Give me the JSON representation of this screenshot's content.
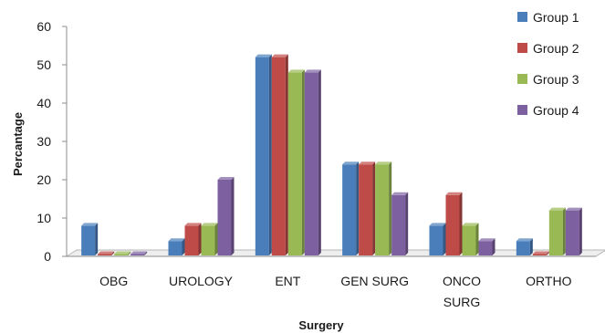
{
  "chart_data": {
    "type": "bar",
    "title": "",
    "xlabel": "Surgery",
    "ylabel": "Percantage",
    "ylim": [
      0,
      60
    ],
    "yticks": [
      0,
      10,
      20,
      30,
      40,
      50,
      60
    ],
    "grid": false,
    "legend_position": "top-right",
    "categories": [
      [
        "OBG"
      ],
      [
        "UROLOGY"
      ],
      [
        "ENT"
      ],
      [
        "GEN SURG"
      ],
      [
        "ONCO",
        "SURG"
      ],
      [
        "ORTHO"
      ]
    ],
    "series": [
      {
        "name": "Group 1",
        "color": "#4a7ebb",
        "values": [
          8,
          4,
          52,
          24,
          8,
          4
        ]
      },
      {
        "name": "Group 2",
        "color": "#be4b48",
        "values": [
          0,
          8,
          52,
          24,
          16,
          0
        ]
      },
      {
        "name": "Group 3",
        "color": "#98b954",
        "values": [
          0,
          8,
          48,
          24,
          8,
          12
        ]
      },
      {
        "name": "Group 4",
        "color": "#7d60a0",
        "values": [
          0,
          20,
          48,
          16,
          4,
          12
        ]
      }
    ]
  }
}
